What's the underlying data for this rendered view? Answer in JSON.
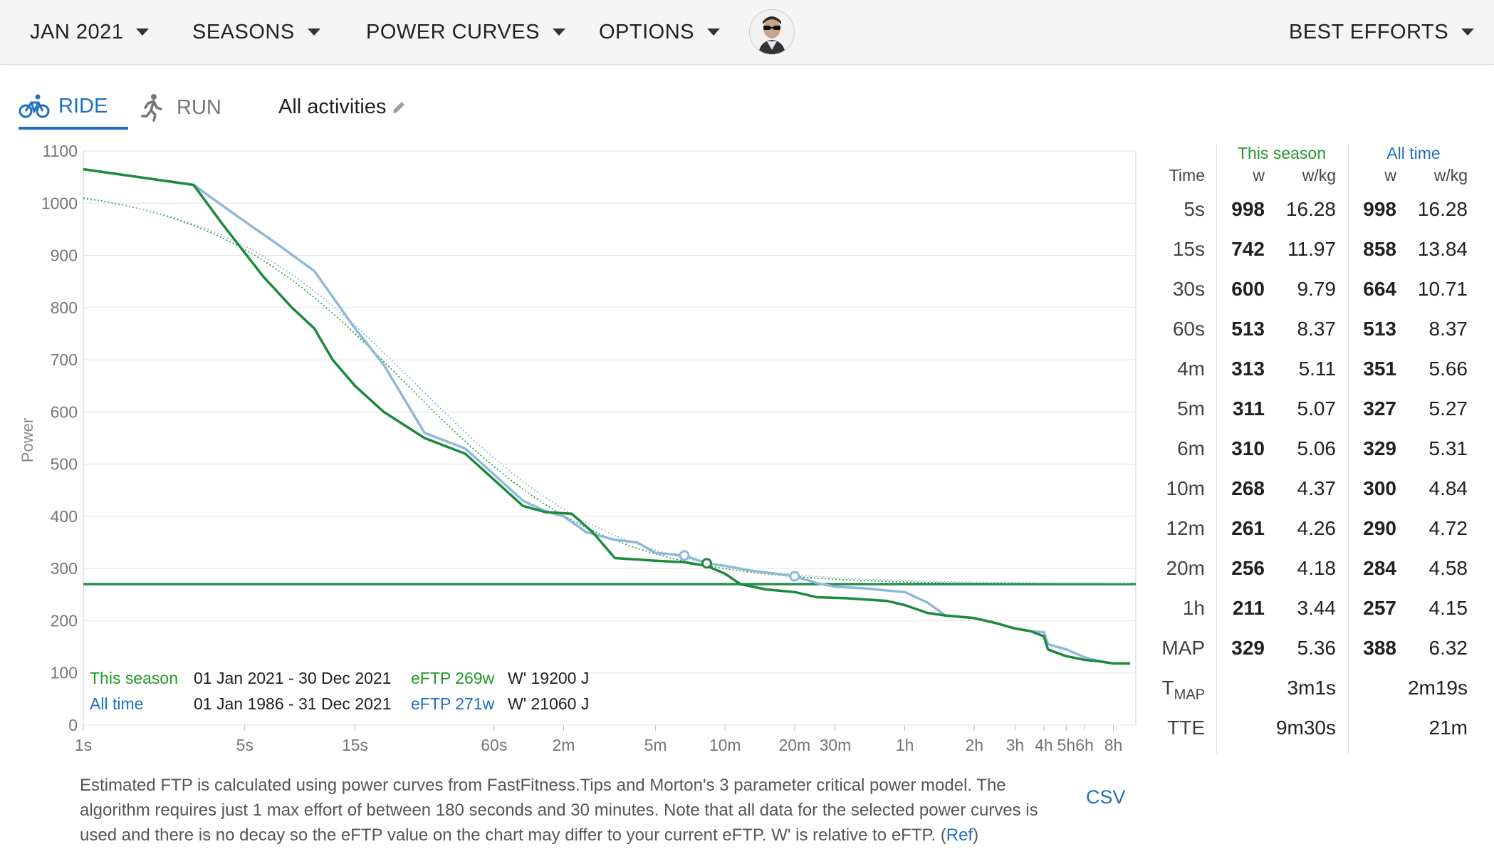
{
  "topbar": {
    "menus": [
      "JAN 2021",
      "SEASONS",
      "POWER CURVES",
      "OPTIONS"
    ],
    "best_efforts": "BEST EFFORTS"
  },
  "tabs": {
    "ride": "RIDE",
    "run": "RUN",
    "activities": "All activities"
  },
  "colors": {
    "season": "#219a2b",
    "all_time": "#1e6fc4",
    "season_line": "#1b8a3c",
    "all_time_line": "#8fb8dc"
  },
  "legend": {
    "rows": [
      {
        "name": "This season",
        "dates": "01 Jan 2021 - 30 Dec 2021",
        "eftp": "eFTP 269w",
        "wprime": "W' 19200 J"
      },
      {
        "name": "All time",
        "dates": "01 Jan 1986 - 31 Dec 2021",
        "eftp": "eFTP 271w",
        "wprime": "W' 21060 J"
      }
    ]
  },
  "chart_data": {
    "type": "line",
    "ylabel": "Power",
    "ylim": [
      0,
      1100
    ],
    "yticks": [
      0,
      100,
      200,
      300,
      400,
      500,
      600,
      700,
      800,
      900,
      1000,
      1100
    ],
    "x_scale": "log",
    "xticks": [
      {
        "label": "1s",
        "s": 1
      },
      {
        "label": "5s",
        "s": 5
      },
      {
        "label": "15s",
        "s": 15
      },
      {
        "label": "60s",
        "s": 60
      },
      {
        "label": "2m",
        "s": 120
      },
      {
        "label": "5m",
        "s": 300
      },
      {
        "label": "10m",
        "s": 600
      },
      {
        "label": "20m",
        "s": 1200
      },
      {
        "label": "30m",
        "s": 1800
      },
      {
        "label": "1h",
        "s": 3600
      },
      {
        "label": "2h",
        "s": 7200
      },
      {
        "label": "3h",
        "s": 10800
      },
      {
        "label": "4h",
        "s": 14400
      },
      {
        "label": "5h",
        "s": 18000
      },
      {
        "label": "6h",
        "s": 21600
      },
      {
        "label": "8h",
        "s": 28800
      }
    ],
    "xlim_s": [
      1,
      36000
    ],
    "eftp_lines": [
      269,
      271
    ],
    "series": [
      {
        "name": "All time",
        "points": [
          [
            1,
            1065
          ],
          [
            3,
            1035
          ],
          [
            5,
            965
          ],
          [
            7,
            920
          ],
          [
            10,
            870
          ],
          [
            15,
            760
          ],
          [
            20,
            690
          ],
          [
            30,
            560
          ],
          [
            45,
            530
          ],
          [
            60,
            480
          ],
          [
            80,
            430
          ],
          [
            100,
            410
          ],
          [
            120,
            400
          ],
          [
            150,
            370
          ],
          [
            200,
            355
          ],
          [
            250,
            350
          ],
          [
            300,
            330
          ],
          [
            400,
            325
          ],
          [
            500,
            310
          ],
          [
            600,
            305
          ],
          [
            800,
            295
          ],
          [
            1000,
            290
          ],
          [
            1200,
            285
          ],
          [
            1500,
            272
          ],
          [
            1800,
            265
          ],
          [
            2400,
            262
          ],
          [
            3000,
            258
          ],
          [
            3600,
            255
          ],
          [
            4500,
            235
          ],
          [
            5400,
            210
          ],
          [
            7200,
            205
          ],
          [
            9000,
            195
          ],
          [
            10800,
            185
          ],
          [
            12600,
            180
          ],
          [
            14400,
            178
          ],
          [
            15000,
            155
          ],
          [
            18000,
            145
          ],
          [
            21600,
            130
          ],
          [
            25200,
            122
          ],
          [
            28800,
            118
          ],
          [
            34000,
            118
          ]
        ]
      },
      {
        "name": "This season",
        "points": [
          [
            1,
            1065
          ],
          [
            3,
            1035
          ],
          [
            4,
            960
          ],
          [
            6,
            860
          ],
          [
            8,
            800
          ],
          [
            10,
            760
          ],
          [
            12,
            700
          ],
          [
            15,
            650
          ],
          [
            20,
            600
          ],
          [
            30,
            550
          ],
          [
            45,
            520
          ],
          [
            60,
            470
          ],
          [
            80,
            420
          ],
          [
            100,
            408
          ],
          [
            130,
            405
          ],
          [
            160,
            370
          ],
          [
            200,
            320
          ],
          [
            300,
            315
          ],
          [
            400,
            312
          ],
          [
            500,
            305
          ],
          [
            600,
            290
          ],
          [
            700,
            270
          ],
          [
            900,
            260
          ],
          [
            1200,
            255
          ],
          [
            1500,
            245
          ],
          [
            2000,
            243
          ],
          [
            3000,
            238
          ],
          [
            3600,
            230
          ],
          [
            4500,
            215
          ],
          [
            5400,
            210
          ],
          [
            7200,
            205
          ],
          [
            9000,
            195
          ],
          [
            10800,
            185
          ],
          [
            12600,
            180
          ],
          [
            14400,
            170
          ],
          [
            15000,
            145
          ],
          [
            18000,
            132
          ],
          [
            21600,
            125
          ],
          [
            25200,
            122
          ],
          [
            28800,
            118
          ],
          [
            34000,
            118
          ]
        ]
      }
    ]
  },
  "table": {
    "headers": {
      "time": "Time",
      "season": "This season",
      "all_time": "All time",
      "w": "w",
      "wkg": "w/kg"
    },
    "rows": [
      {
        "t": "5s",
        "sw": "998",
        "sk": "16.28",
        "aw": "998",
        "ak": "16.28"
      },
      {
        "t": "15s",
        "sw": "742",
        "sk": "11.97",
        "aw": "858",
        "ak": "13.84"
      },
      {
        "t": "30s",
        "sw": "600",
        "sk": "9.79",
        "aw": "664",
        "ak": "10.71"
      },
      {
        "t": "60s",
        "sw": "513",
        "sk": "8.37",
        "aw": "513",
        "ak": "8.37"
      },
      {
        "t": "4m",
        "sw": "313",
        "sk": "5.11",
        "aw": "351",
        "ak": "5.66"
      },
      {
        "t": "5m",
        "sw": "311",
        "sk": "5.07",
        "aw": "327",
        "ak": "5.27"
      },
      {
        "t": "6m",
        "sw": "310",
        "sk": "5.06",
        "aw": "329",
        "ak": "5.31"
      },
      {
        "t": "10m",
        "sw": "268",
        "sk": "4.37",
        "aw": "300",
        "ak": "4.84"
      },
      {
        "t": "12m",
        "sw": "261",
        "sk": "4.26",
        "aw": "290",
        "ak": "4.72"
      },
      {
        "t": "20m",
        "sw": "256",
        "sk": "4.18",
        "aw": "284",
        "ak": "4.58"
      },
      {
        "t": "1h",
        "sw": "211",
        "sk": "3.44",
        "aw": "257",
        "ak": "4.15"
      },
      {
        "t": "MAP",
        "sw": "329",
        "sk": "5.36",
        "aw": "388",
        "ak": "6.32"
      }
    ],
    "tmap": {
      "label": "T",
      "sub": "MAP",
      "season": "3m1s",
      "all_time": "2m19s"
    },
    "tte": {
      "label": "TTE",
      "season": "9m30s",
      "all_time": "21m"
    }
  },
  "footnote": {
    "text": "Estimated FTP is calculated using power curves from FastFitness.Tips and Morton's 3 parameter critical power model. The algorithm requires just 1 max effort of between 180 seconds and 30 minutes. Note that all data for the selected power curves is used and there is no decay so the eFTP value on the chart may differ to your current eFTP. W' is relative to eFTP. (",
    "ref": "Ref",
    "close": ")"
  },
  "csv": "CSV"
}
